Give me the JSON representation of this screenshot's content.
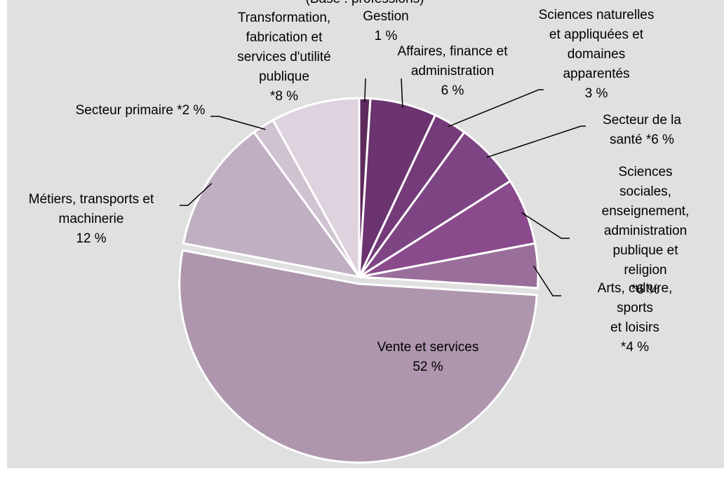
{
  "chart_data": {
    "type": "pie",
    "subtitle": "(Base : professions)",
    "categories": [
      "Gestion",
      "Affaires, finance et\nadministration",
      "Sciences naturelles\net appliquées et\ndomaines\napparentés",
      "Secteur de la\nsanté",
      "Sciences sociales,\nenseignement,\nadministration\npublique et religion",
      "Arts, culture, sports\net loisirs",
      "Vente et services",
      "Métiers, transports et\nmachinerie",
      "Secteur primaire",
      "Transformation,\nfabrication et\nservices d'utilité\npublique"
    ],
    "values": [
      1,
      6,
      3,
      6,
      6,
      4,
      52,
      12,
      2,
      8
    ],
    "value_labels": [
      "1 %",
      "6 %",
      "3 %",
      "*6 %",
      "*6 %",
      "*4 %",
      "52 %",
      "12 %",
      "*2 %",
      "*8 %"
    ],
    "colors": [
      "#5e2a5c",
      "#6b3370",
      "#743a79",
      "#7e4584",
      "#8a4a8c",
      "#9a6e9b",
      "#ad96ae",
      "#c0afc3",
      "#d0c3d1",
      "#ded2df"
    ],
    "exploded_category": "Vente et services"
  }
}
